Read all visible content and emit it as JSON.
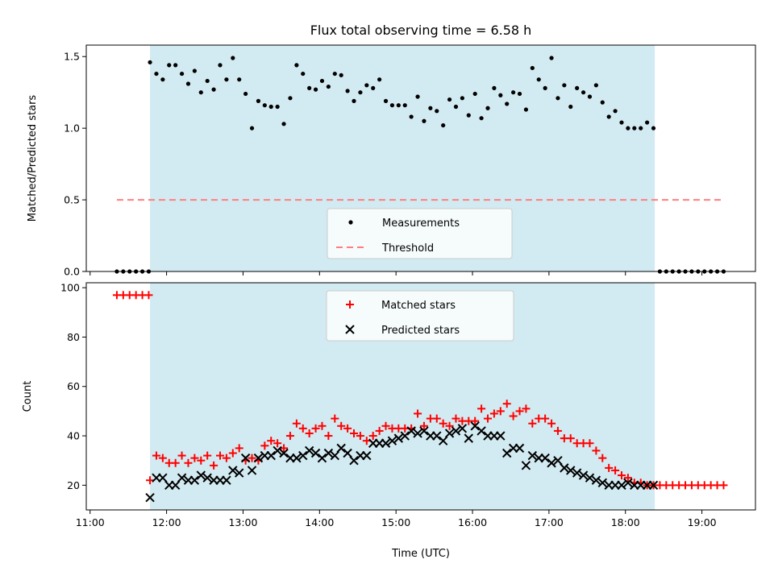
{
  "chart_data": [
    {
      "type": "scatter",
      "title": "Flux total observing time = 6.58 h",
      "ylabel": "Matched/Predicted stars",
      "xlabel": "",
      "ylim": [
        0,
        1.58
      ],
      "xlim": [
        "10:57",
        "19:42"
      ],
      "yticks": [
        0.0,
        0.5,
        1.0,
        1.5
      ],
      "ytick_labels": [
        "0.0",
        "0.5",
        "1.0",
        "1.5"
      ],
      "shaded_span": [
        "11:47",
        "18:23"
      ],
      "shade_color": "#add8e6",
      "grid": false,
      "legend": "bottom-center",
      "legend_entries": [
        "Measurements",
        "Threshold"
      ],
      "series": [
        {
          "name": "Measurements",
          "marker": "dot",
          "color": "#000000",
          "x": [
            "11:21",
            "11:26",
            "11:31",
            "11:36",
            "11:41",
            "11:46",
            "11:47",
            "11:52",
            "11:57",
            "12:02",
            "12:07",
            "12:12",
            "12:17",
            "12:22",
            "12:27",
            "12:32",
            "12:37",
            "12:42",
            "12:47",
            "12:52",
            "12:57",
            "13:02",
            "13:07",
            "13:12",
            "13:17",
            "13:22",
            "13:27",
            "13:32",
            "13:37",
            "13:42",
            "13:47",
            "13:52",
            "13:57",
            "14:02",
            "14:07",
            "14:12",
            "14:17",
            "14:22",
            "14:27",
            "14:32",
            "14:37",
            "14:42",
            "14:47",
            "14:52",
            "14:57",
            "15:02",
            "15:07",
            "15:12",
            "15:17",
            "15:22",
            "15:27",
            "15:32",
            "15:37",
            "15:42",
            "15:47",
            "15:52",
            "15:57",
            "16:02",
            "16:07",
            "16:12",
            "16:17",
            "16:22",
            "16:27",
            "16:32",
            "16:37",
            "16:42",
            "16:47",
            "16:52",
            "16:57",
            "17:02",
            "17:07",
            "17:12",
            "17:17",
            "17:22",
            "17:27",
            "17:32",
            "17:37",
            "17:42",
            "17:47",
            "17:52",
            "17:57",
            "18:02",
            "18:07",
            "18:12",
            "18:17",
            "18:22",
            "18:27",
            "18:32",
            "18:37",
            "18:42",
            "18:47",
            "18:52",
            "18:57",
            "19:02",
            "19:07",
            "19:12",
            "19:17"
          ],
          "y": [
            0,
            0,
            0,
            0,
            0,
            0,
            1.46,
            1.38,
            1.34,
            1.44,
            1.44,
            1.38,
            1.31,
            1.4,
            1.25,
            1.33,
            1.27,
            1.44,
            1.34,
            1.49,
            1.34,
            1.24,
            1.0,
            1.19,
            1.16,
            1.15,
            1.15,
            1.03,
            1.21,
            1.44,
            1.38,
            1.28,
            1.27,
            1.33,
            1.29,
            1.38,
            1.37,
            1.26,
            1.19,
            1.25,
            1.3,
            1.28,
            1.34,
            1.19,
            1.16,
            1.16,
            1.16,
            1.08,
            1.22,
            1.05,
            1.14,
            1.12,
            1.02,
            1.2,
            1.15,
            1.21,
            1.09,
            1.24,
            1.07,
            1.14,
            1.28,
            1.23,
            1.17,
            1.25,
            1.24,
            1.13,
            1.42,
            1.34,
            1.28,
            1.49,
            1.21,
            1.3,
            1.15,
            1.28,
            1.25,
            1.22,
            1.3,
            1.18,
            1.08,
            1.12,
            1.04,
            1.0,
            1.0,
            1.0,
            1.04,
            1.0,
            0,
            0,
            0,
            0,
            0,
            0,
            0,
            0,
            0,
            0,
            0
          ]
        },
        {
          "name": "Threshold",
          "style": "dashed",
          "color": "#ff7f7f",
          "x": [
            "11:21",
            "19:17"
          ],
          "y": [
            0.5,
            0.5
          ]
        }
      ]
    },
    {
      "type": "scatter",
      "title": "",
      "ylabel": "Count",
      "xlabel": "Time (UTC)",
      "ylim": [
        10,
        102
      ],
      "xlim": [
        "10:57",
        "19:42"
      ],
      "yticks": [
        20,
        40,
        60,
        80,
        100
      ],
      "ytick_labels": [
        "20",
        "40",
        "60",
        "80",
        "100"
      ],
      "xticks": [
        "11:00",
        "12:00",
        "13:00",
        "14:00",
        "15:00",
        "16:00",
        "17:00",
        "18:00",
        "19:00"
      ],
      "xtick_labels": [
        "11:00",
        "12:00",
        "13:00",
        "14:00",
        "15:00",
        "16:00",
        "17:00",
        "18:00",
        "19:00"
      ],
      "shaded_span": [
        "11:47",
        "18:23"
      ],
      "shade_color": "#add8e6",
      "grid": false,
      "legend": "top-center",
      "legend_entries": [
        "Matched stars",
        "Predicted stars"
      ],
      "series": [
        {
          "name": "Matched stars",
          "marker": "plus",
          "color": "#ff0000",
          "x": [
            "11:21",
            "11:26",
            "11:31",
            "11:36",
            "11:41",
            "11:46",
            "11:47",
            "11:52",
            "11:57",
            "12:02",
            "12:07",
            "12:12",
            "12:17",
            "12:22",
            "12:27",
            "12:32",
            "12:37",
            "12:42",
            "12:47",
            "12:52",
            "12:57",
            "13:02",
            "13:07",
            "13:12",
            "13:17",
            "13:22",
            "13:27",
            "13:32",
            "13:37",
            "13:42",
            "13:47",
            "13:52",
            "13:57",
            "14:02",
            "14:07",
            "14:12",
            "14:17",
            "14:22",
            "14:27",
            "14:32",
            "14:37",
            "14:42",
            "14:47",
            "14:52",
            "14:57",
            "15:02",
            "15:07",
            "15:12",
            "15:17",
            "15:22",
            "15:27",
            "15:32",
            "15:37",
            "15:42",
            "15:47",
            "15:52",
            "15:57",
            "16:02",
            "16:07",
            "16:12",
            "16:17",
            "16:22",
            "16:27",
            "16:32",
            "16:37",
            "16:42",
            "16:47",
            "16:52",
            "16:57",
            "17:02",
            "17:07",
            "17:12",
            "17:17",
            "17:22",
            "17:27",
            "17:32",
            "17:37",
            "17:42",
            "17:47",
            "17:52",
            "17:57",
            "18:02",
            "18:07",
            "18:12",
            "18:17",
            "18:22",
            "18:27",
            "18:32",
            "18:37",
            "18:42",
            "18:47",
            "18:52",
            "18:57",
            "19:02",
            "19:07",
            "19:12",
            "19:17"
          ],
          "y": [
            97,
            97,
            97,
            97,
            97,
            97,
            22,
            32,
            31,
            29,
            29,
            32,
            29,
            31,
            30,
            32,
            28,
            32,
            31,
            33,
            35,
            30,
            31,
            30,
            36,
            38,
            37,
            35,
            40,
            45,
            43,
            41,
            43,
            44,
            40,
            47,
            44,
            43,
            41,
            40,
            38,
            40,
            42,
            44,
            43,
            43,
            43,
            43,
            49,
            44,
            47,
            47,
            45,
            44,
            47,
            46,
            46,
            46,
            51,
            47,
            49,
            50,
            53,
            48,
            50,
            51,
            45,
            47,
            47,
            45,
            42,
            39,
            39,
            37,
            37,
            37,
            34,
            31,
            27,
            26,
            24,
            23,
            21,
            21,
            20,
            20,
            20,
            20,
            20,
            20,
            20,
            20,
            20,
            20,
            20,
            20,
            20
          ]
        },
        {
          "name": "Predicted stars",
          "marker": "x",
          "color": "#000000",
          "x": [
            "11:47",
            "11:52",
            "11:57",
            "12:02",
            "12:07",
            "12:12",
            "12:17",
            "12:22",
            "12:27",
            "12:32",
            "12:37",
            "12:42",
            "12:47",
            "12:52",
            "12:57",
            "13:02",
            "13:07",
            "13:12",
            "13:17",
            "13:22",
            "13:27",
            "13:32",
            "13:37",
            "13:42",
            "13:47",
            "13:52",
            "13:57",
            "14:02",
            "14:07",
            "14:12",
            "14:17",
            "14:22",
            "14:27",
            "14:32",
            "14:37",
            "14:42",
            "14:47",
            "14:52",
            "14:57",
            "15:02",
            "15:07",
            "15:12",
            "15:17",
            "15:22",
            "15:27",
            "15:32",
            "15:37",
            "15:42",
            "15:47",
            "15:52",
            "15:57",
            "16:02",
            "16:07",
            "16:12",
            "16:17",
            "16:22",
            "16:27",
            "16:32",
            "16:37",
            "16:42",
            "16:47",
            "16:52",
            "16:57",
            "17:02",
            "17:07",
            "17:12",
            "17:17",
            "17:22",
            "17:27",
            "17:32",
            "17:37",
            "17:42",
            "17:47",
            "17:52",
            "17:57",
            "18:02",
            "18:07",
            "18:12",
            "18:17",
            "18:22"
          ],
          "y": [
            15,
            23,
            23,
            20,
            20,
            23,
            22,
            22,
            24,
            23,
            22,
            22,
            22,
            26,
            25,
            31,
            26,
            31,
            32,
            32,
            34,
            33,
            31,
            31,
            32,
            34,
            33,
            31,
            33,
            32,
            35,
            33,
            30,
            32,
            32,
            37,
            37,
            37,
            38,
            39,
            40,
            42,
            41,
            42,
            40,
            40,
            38,
            41,
            42,
            43,
            39,
            44,
            42,
            40,
            40,
            40,
            33,
            35,
            35,
            28,
            32,
            31,
            31,
            29,
            30,
            27,
            26,
            25,
            24,
            23,
            22,
            21,
            20,
            20,
            20,
            21,
            20,
            20,
            20,
            20
          ]
        }
      ]
    }
  ]
}
